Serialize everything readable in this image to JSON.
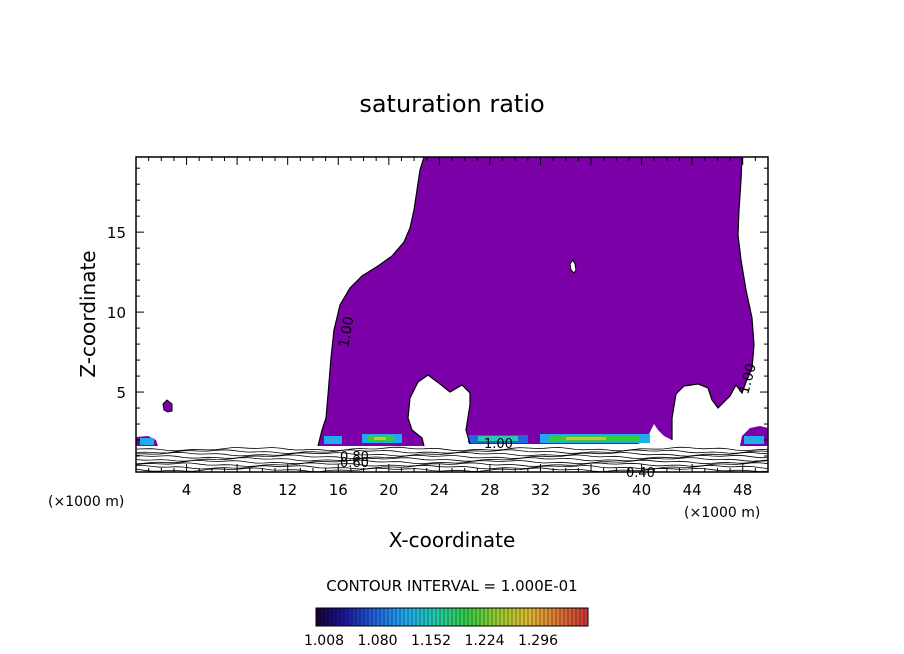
{
  "chart_data": {
    "type": "contour",
    "title": "saturation ratio",
    "xlabel": "X-coordinate",
    "ylabel": "Z-coordinate",
    "x_unit_left": "(×1000 m)",
    "x_unit_right": "(×1000 m)",
    "xlim": [
      0,
      50
    ],
    "ylim": [
      0,
      19.7
    ],
    "xticks": [
      4,
      8,
      12,
      16,
      20,
      24,
      28,
      32,
      36,
      40,
      44,
      48
    ],
    "yticks": [
      5,
      10,
      15
    ],
    "contour_interval_text": "CONTOUR INTERVAL = 1.000E-01",
    "contour_labels": [
      "1.00",
      "1.00",
      "1.00",
      "0.40",
      "0.80",
      "0.60"
    ],
    "colorbar": {
      "tick_labels": [
        "1.008",
        "1.080",
        "1.152",
        "1.224",
        "1.296"
      ],
      "colors": [
        "#1a0033",
        "#1a1aa0",
        "#2266dd",
        "#22aaee",
        "#22ccaa",
        "#33cc44",
        "#99cc33",
        "#ddbb33",
        "#dd7733",
        "#cc3333"
      ]
    },
    "fill_color_supersaturated": "#7b00a8"
  }
}
